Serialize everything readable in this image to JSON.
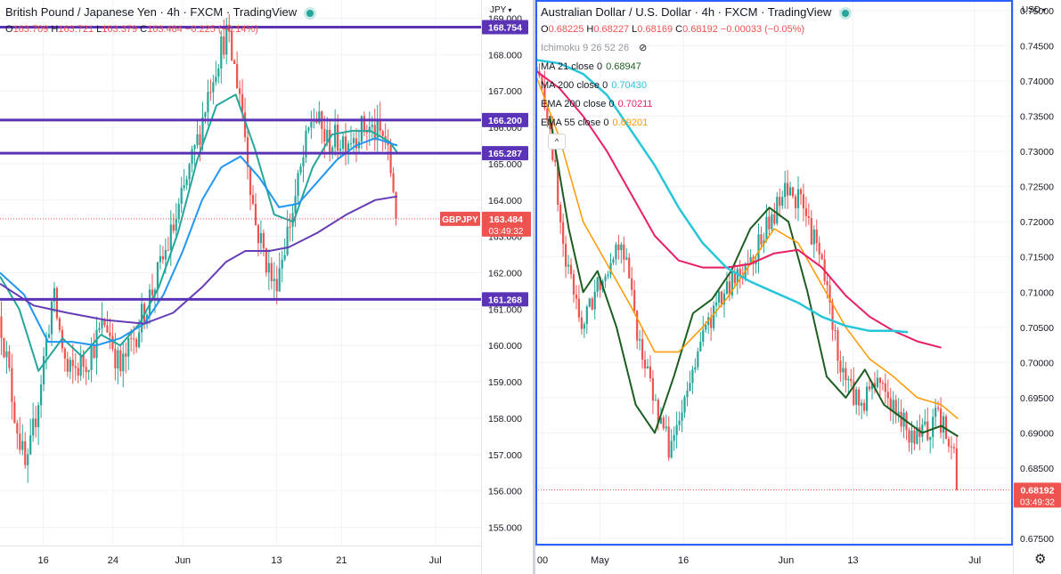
{
  "left": {
    "title": "British Pound / Japanese Yen · 4h · FXCM · TradingView",
    "ohlc": {
      "o": "163.709",
      "h": "163.721",
      "l": "163.379",
      "c": "163.484",
      "chg": "−0.225 (−0.14%)"
    },
    "currency": "JPY",
    "price_tag": {
      "symbol": "GBPJPY",
      "price": "163.484",
      "countdown": "03:49:32"
    },
    "colors": {
      "hline": "#5b33b6",
      "ema_teal": "#26a69a",
      "ema_blue": "#2196f3",
      "ma_purple": "#673ab7",
      "up": "#26a69a",
      "down": "#ef5350"
    }
  },
  "right": {
    "title": "Australian Dollar / U.S. Dollar · 4h · FXCM · TradingView",
    "ohlc": {
      "o": "0.68225",
      "h": "0.68227",
      "l": "0.68169",
      "c": "0.68192",
      "chg": "−0.00033 (−0.05%)"
    },
    "currency": "USD",
    "indicators": [
      {
        "label": "Ichimoku 9 26 52 26",
        "value": "",
        "color": "#9598a1"
      },
      {
        "label": "MA 21 close 0",
        "value": "0.68947",
        "color": "#1b5e20"
      },
      {
        "label": "MA 200 close 0",
        "value": "0.70430",
        "color": "#26c6da"
      },
      {
        "label": "EMA 200 close 0",
        "value": "0.70211",
        "color": "#e91e63"
      },
      {
        "label": "EMA 55 close 0",
        "value": "0.69201",
        "color": "#ff9800"
      }
    ],
    "collapse_label": "^",
    "price_tag": {
      "price": "0.68192",
      "countdown": "03:49:32"
    },
    "settings_icon": "gear-icon"
  },
  "chart_data": [
    {
      "type": "candlestick",
      "title": "British Pound / Japanese Yen · 4h · FXCM · TradingView",
      "ylabel": "JPY",
      "ylim": [
        154.5,
        169.5
      ],
      "y_ticks": [
        155,
        156,
        157,
        158,
        159,
        160,
        161,
        162,
        163,
        164,
        165,
        166,
        167,
        168,
        169
      ],
      "x_tick_labels": [
        "16",
        "24",
        "Jun",
        "13",
        "21",
        "Jul"
      ],
      "horizontal_levels": [
        168.754,
        166.2,
        165.287,
        161.268
      ],
      "last_price": 163.484,
      "close_path": [
        {
          "x": 0,
          "y": 160.8
        },
        {
          "x": 0.03,
          "y": 158.2
        },
        {
          "x": 0.055,
          "y": 156.4
        },
        {
          "x": 0.08,
          "y": 158.6
        },
        {
          "x": 0.11,
          "y": 161.4
        },
        {
          "x": 0.14,
          "y": 159.2
        },
        {
          "x": 0.18,
          "y": 159.6
        },
        {
          "x": 0.22,
          "y": 160.7
        },
        {
          "x": 0.25,
          "y": 159.3
        },
        {
          "x": 0.29,
          "y": 160.6
        },
        {
          "x": 0.33,
          "y": 162.0
        },
        {
          "x": 0.37,
          "y": 163.6
        },
        {
          "x": 0.41,
          "y": 165.6
        },
        {
          "x": 0.44,
          "y": 167.4
        },
        {
          "x": 0.47,
          "y": 168.6
        },
        {
          "x": 0.5,
          "y": 166.9
        },
        {
          "x": 0.53,
          "y": 163.4
        },
        {
          "x": 0.57,
          "y": 161.6
        },
        {
          "x": 0.61,
          "y": 163.8
        },
        {
          "x": 0.65,
          "y": 166.4
        },
        {
          "x": 0.68,
          "y": 165.6
        },
        {
          "x": 0.72,
          "y": 165.7
        },
        {
          "x": 0.76,
          "y": 166.0
        },
        {
          "x": 0.8,
          "y": 165.7
        },
        {
          "x": 0.82,
          "y": 164.2
        },
        {
          "x": 0.826,
          "y": 163.48
        }
      ],
      "series": [
        {
          "name": "",
          "color": "#26a69a",
          "points": [
            {
              "x": 0,
              "y": 161.9
            },
            {
              "x": 0.04,
              "y": 161.0
            },
            {
              "x": 0.08,
              "y": 159.3
            },
            {
              "x": 0.13,
              "y": 160.2
            },
            {
              "x": 0.17,
              "y": 159.7
            },
            {
              "x": 0.21,
              "y": 160.3
            },
            {
              "x": 0.25,
              "y": 160.0
            },
            {
              "x": 0.29,
              "y": 160.6
            },
            {
              "x": 0.33,
              "y": 161.6
            },
            {
              "x": 0.37,
              "y": 163.1
            },
            {
              "x": 0.41,
              "y": 165.1
            },
            {
              "x": 0.45,
              "y": 166.6
            },
            {
              "x": 0.49,
              "y": 166.9
            },
            {
              "x": 0.53,
              "y": 165.4
            },
            {
              "x": 0.57,
              "y": 163.6
            },
            {
              "x": 0.61,
              "y": 163.4
            },
            {
              "x": 0.65,
              "y": 164.9
            },
            {
              "x": 0.69,
              "y": 165.8
            },
            {
              "x": 0.73,
              "y": 165.9
            },
            {
              "x": 0.77,
              "y": 165.9
            },
            {
              "x": 0.81,
              "y": 165.6
            },
            {
              "x": 0.826,
              "y": 165.3
            }
          ]
        },
        {
          "name": "",
          "color": "#2196f3",
          "points": [
            {
              "x": 0,
              "y": 162.0
            },
            {
              "x": 0.05,
              "y": 161.4
            },
            {
              "x": 0.1,
              "y": 160.1
            },
            {
              "x": 0.15,
              "y": 160.1
            },
            {
              "x": 0.2,
              "y": 160.0
            },
            {
              "x": 0.25,
              "y": 160.2
            },
            {
              "x": 0.3,
              "y": 160.6
            },
            {
              "x": 0.34,
              "y": 161.4
            },
            {
              "x": 0.38,
              "y": 162.6
            },
            {
              "x": 0.42,
              "y": 164.0
            },
            {
              "x": 0.46,
              "y": 164.9
            },
            {
              "x": 0.5,
              "y": 165.2
            },
            {
              "x": 0.54,
              "y": 164.6
            },
            {
              "x": 0.58,
              "y": 163.8
            },
            {
              "x": 0.62,
              "y": 163.9
            },
            {
              "x": 0.66,
              "y": 164.5
            },
            {
              "x": 0.7,
              "y": 165.1
            },
            {
              "x": 0.74,
              "y": 165.5
            },
            {
              "x": 0.78,
              "y": 165.7
            },
            {
              "x": 0.826,
              "y": 165.5
            }
          ]
        },
        {
          "name": "",
          "color": "#673ab7",
          "points": [
            {
              "x": 0,
              "y": 161.7
            },
            {
              "x": 0.07,
              "y": 161.1
            },
            {
              "x": 0.14,
              "y": 160.9
            },
            {
              "x": 0.22,
              "y": 160.7
            },
            {
              "x": 0.3,
              "y": 160.6
            },
            {
              "x": 0.36,
              "y": 160.9
            },
            {
              "x": 0.42,
              "y": 161.6
            },
            {
              "x": 0.47,
              "y": 162.3
            },
            {
              "x": 0.51,
              "y": 162.6
            },
            {
              "x": 0.56,
              "y": 162.6
            },
            {
              "x": 0.6,
              "y": 162.7
            },
            {
              "x": 0.66,
              "y": 163.1
            },
            {
              "x": 0.72,
              "y": 163.6
            },
            {
              "x": 0.78,
              "y": 164.0
            },
            {
              "x": 0.826,
              "y": 164.1
            }
          ]
        }
      ]
    },
    {
      "type": "candlestick",
      "title": "Australian Dollar / U.S. Dollar · 4h · FXCM · TradingView",
      "ylabel": "USD",
      "ylim": [
        0.674,
        0.7515
      ],
      "y_ticks": [
        0.675,
        0.68,
        0.685,
        0.69,
        0.695,
        0.7,
        0.705,
        0.71,
        0.715,
        0.72,
        0.725,
        0.73,
        0.735,
        0.74,
        0.745,
        0.75
      ],
      "x_tick_labels": [
        "00",
        "May",
        "16",
        "Jun",
        "13",
        "Jul"
      ],
      "last_price": 0.68192,
      "close_path": [
        {
          "x": 0,
          "y": 0.742
        },
        {
          "x": 0.03,
          "y": 0.734
        },
        {
          "x": 0.06,
          "y": 0.715
        },
        {
          "x": 0.1,
          "y": 0.705
        },
        {
          "x": 0.13,
          "y": 0.711
        },
        {
          "x": 0.18,
          "y": 0.718
        },
        {
          "x": 0.22,
          "y": 0.702
        },
        {
          "x": 0.26,
          "y": 0.692
        },
        {
          "x": 0.28,
          "y": 0.688
        },
        {
          "x": 0.31,
          "y": 0.693
        },
        {
          "x": 0.34,
          "y": 0.702
        },
        {
          "x": 0.38,
          "y": 0.708
        },
        {
          "x": 0.42,
          "y": 0.712
        },
        {
          "x": 0.46,
          "y": 0.716
        },
        {
          "x": 0.5,
          "y": 0.721
        },
        {
          "x": 0.53,
          "y": 0.725
        },
        {
          "x": 0.56,
          "y": 0.722
        },
        {
          "x": 0.6,
          "y": 0.714
        },
        {
          "x": 0.64,
          "y": 0.699
        },
        {
          "x": 0.68,
          "y": 0.694
        },
        {
          "x": 0.72,
          "y": 0.698
        },
        {
          "x": 0.76,
          "y": 0.692
        },
        {
          "x": 0.8,
          "y": 0.689
        },
        {
          "x": 0.84,
          "y": 0.692
        },
        {
          "x": 0.875,
          "y": 0.689
        },
        {
          "x": 0.885,
          "y": 0.682
        }
      ],
      "series": [
        {
          "name": "MA 21 close 0",
          "color": "#1b5e20",
          "points": [
            {
              "x": 0.03,
              "y": 0.735
            },
            {
              "x": 0.07,
              "y": 0.719
            },
            {
              "x": 0.1,
              "y": 0.71
            },
            {
              "x": 0.13,
              "y": 0.713
            },
            {
              "x": 0.17,
              "y": 0.705
            },
            {
              "x": 0.21,
              "y": 0.694
            },
            {
              "x": 0.25,
              "y": 0.69
            },
            {
              "x": 0.29,
              "y": 0.698
            },
            {
              "x": 0.33,
              "y": 0.707
            },
            {
              "x": 0.37,
              "y": 0.709
            },
            {
              "x": 0.41,
              "y": 0.713
            },
            {
              "x": 0.45,
              "y": 0.719
            },
            {
              "x": 0.49,
              "y": 0.722
            },
            {
              "x": 0.53,
              "y": 0.72
            },
            {
              "x": 0.57,
              "y": 0.71
            },
            {
              "x": 0.61,
              "y": 0.698
            },
            {
              "x": 0.65,
              "y": 0.695
            },
            {
              "x": 0.69,
              "y": 0.699
            },
            {
              "x": 0.73,
              "y": 0.694
            },
            {
              "x": 0.77,
              "y": 0.692
            },
            {
              "x": 0.81,
              "y": 0.69
            },
            {
              "x": 0.85,
              "y": 0.691
            },
            {
              "x": 0.885,
              "y": 0.6895
            }
          ]
        },
        {
          "name": "EMA 55 close 0",
          "color": "#ff9800",
          "points": [
            {
              "x": 0,
              "y": 0.741
            },
            {
              "x": 0.05,
              "y": 0.732
            },
            {
              "x": 0.1,
              "y": 0.72
            },
            {
              "x": 0.15,
              "y": 0.714
            },
            {
              "x": 0.2,
              "y": 0.708
            },
            {
              "x": 0.25,
              "y": 0.7015
            },
            {
              "x": 0.3,
              "y": 0.7015
            },
            {
              "x": 0.35,
              "y": 0.705
            },
            {
              "x": 0.4,
              "y": 0.709
            },
            {
              "x": 0.45,
              "y": 0.714
            },
            {
              "x": 0.5,
              "y": 0.719
            },
            {
              "x": 0.55,
              "y": 0.717
            },
            {
              "x": 0.6,
              "y": 0.711
            },
            {
              "x": 0.65,
              "y": 0.705
            },
            {
              "x": 0.7,
              "y": 0.7005
            },
            {
              "x": 0.75,
              "y": 0.698
            },
            {
              "x": 0.8,
              "y": 0.695
            },
            {
              "x": 0.85,
              "y": 0.694
            },
            {
              "x": 0.885,
              "y": 0.692
            }
          ]
        },
        {
          "name": "EMA 200 close 0",
          "color": "#e91e63",
          "points": [
            {
              "x": 0,
              "y": 0.7415
            },
            {
              "x": 0.05,
              "y": 0.739
            },
            {
              "x": 0.1,
              "y": 0.735
            },
            {
              "x": 0.15,
              "y": 0.73
            },
            {
              "x": 0.2,
              "y": 0.724
            },
            {
              "x": 0.25,
              "y": 0.718
            },
            {
              "x": 0.3,
              "y": 0.7145
            },
            {
              "x": 0.35,
              "y": 0.7135
            },
            {
              "x": 0.4,
              "y": 0.7135
            },
            {
              "x": 0.45,
              "y": 0.714
            },
            {
              "x": 0.5,
              "y": 0.7155
            },
            {
              "x": 0.55,
              "y": 0.716
            },
            {
              "x": 0.6,
              "y": 0.7135
            },
            {
              "x": 0.65,
              "y": 0.7095
            },
            {
              "x": 0.7,
              "y": 0.7065
            },
            {
              "x": 0.75,
              "y": 0.7045
            },
            {
              "x": 0.8,
              "y": 0.703
            },
            {
              "x": 0.85,
              "y": 0.7021
            }
          ]
        },
        {
          "name": "MA 200 close 0",
          "color": "#26c6da",
          "points": [
            {
              "x": 0,
              "y": 0.743
            },
            {
              "x": 0.05,
              "y": 0.7425
            },
            {
              "x": 0.1,
              "y": 0.741
            },
            {
              "x": 0.15,
              "y": 0.738
            },
            {
              "x": 0.2,
              "y": 0.733
            },
            {
              "x": 0.25,
              "y": 0.728
            },
            {
              "x": 0.3,
              "y": 0.722
            },
            {
              "x": 0.35,
              "y": 0.717
            },
            {
              "x": 0.4,
              "y": 0.7135
            },
            {
              "x": 0.45,
              "y": 0.7115
            },
            {
              "x": 0.5,
              "y": 0.71
            },
            {
              "x": 0.55,
              "y": 0.7085
            },
            {
              "x": 0.6,
              "y": 0.7065
            },
            {
              "x": 0.65,
              "y": 0.7052
            },
            {
              "x": 0.7,
              "y": 0.7045
            },
            {
              "x": 0.75,
              "y": 0.7045
            },
            {
              "x": 0.78,
              "y": 0.7043
            }
          ]
        }
      ]
    }
  ]
}
